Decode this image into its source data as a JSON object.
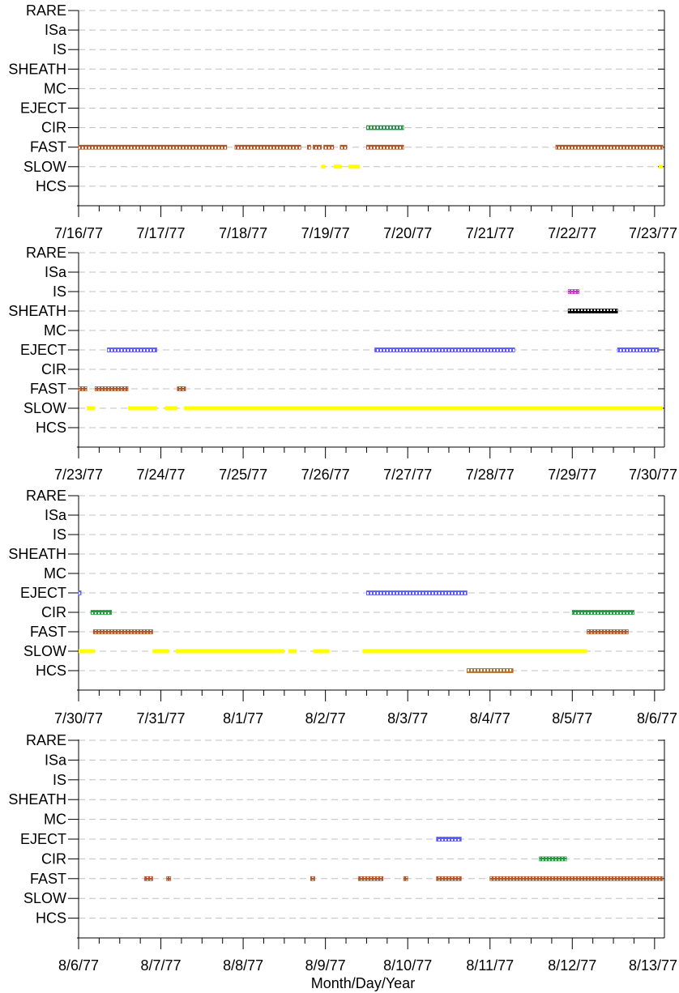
{
  "chart_data": [
    {
      "type": "timeline",
      "categories": [
        "RARE",
        "ISa",
        "IS",
        "SHEATH",
        "MC",
        "EJECT",
        "CIR",
        "FAST",
        "SLOW",
        "HCS"
      ],
      "tick_labels": [
        "7/16/77",
        "7/17/77",
        "7/18/77",
        "7/19/77",
        "7/20/77",
        "7/21/77",
        "7/22/77",
        "7/23/77"
      ],
      "xlim_days": [
        0,
        7.1
      ],
      "grid": "dashed horizontal",
      "intervals": {
        "CIR": [
          [
            3.5,
            3.95
          ]
        ],
        "FAST": [
          [
            0.0,
            1.8
          ],
          [
            1.9,
            2.7
          ],
          [
            2.78,
            2.82
          ],
          [
            2.85,
            2.95
          ],
          [
            2.98,
            3.1
          ],
          [
            3.18,
            3.26
          ],
          [
            3.5,
            3.95
          ],
          [
            5.8,
            7.1
          ]
        ],
        "SLOW": [
          [
            2.95,
            3.0
          ],
          [
            3.1,
            3.2
          ],
          [
            3.28,
            3.42
          ],
          [
            7.05,
            7.1
          ]
        ]
      }
    },
    {
      "type": "timeline",
      "categories": [
        "RARE",
        "ISa",
        "IS",
        "SHEATH",
        "MC",
        "EJECT",
        "CIR",
        "FAST",
        "SLOW",
        "HCS"
      ],
      "tick_labels": [
        "7/23/77",
        "7/24/77",
        "7/25/77",
        "7/26/77",
        "7/27/77",
        "7/28/77",
        "7/29/77",
        "7/30/77"
      ],
      "xlim_days": [
        0,
        7.1
      ],
      "grid": "dashed horizontal",
      "intervals": {
        "IS": [
          [
            5.95,
            6.08
          ]
        ],
        "SHEATH": [
          [
            5.95,
            6.55
          ]
        ],
        "EJECT": [
          [
            0.35,
            0.95
          ],
          [
            3.6,
            5.3
          ],
          [
            6.55,
            7.05
          ]
        ],
        "FAST": [
          [
            0.0,
            0.1
          ],
          [
            0.2,
            0.6
          ],
          [
            1.2,
            1.3
          ]
        ],
        "SLOW": [
          [
            0.1,
            0.2
          ],
          [
            0.6,
            0.95
          ],
          [
            1.05,
            1.2
          ],
          [
            1.28,
            7.1
          ]
        ]
      }
    },
    {
      "type": "timeline",
      "categories": [
        "RARE",
        "ISa",
        "IS",
        "SHEATH",
        "MC",
        "EJECT",
        "CIR",
        "FAST",
        "SLOW",
        "HCS"
      ],
      "tick_labels": [
        "7/30/77",
        "7/31/77",
        "8/1/77",
        "8/2/77",
        "8/3/77",
        "8/4/77",
        "8/5/77",
        "8/6/77"
      ],
      "xlim_days": [
        0,
        7.1
      ],
      "grid": "dashed horizontal",
      "intervals": {
        "EJECT": [
          [
            0.0,
            0.03
          ],
          [
            3.5,
            4.72
          ]
        ],
        "CIR": [
          [
            0.15,
            0.4
          ],
          [
            6.0,
            6.75
          ]
        ],
        "FAST": [
          [
            0.18,
            0.9
          ],
          [
            6.18,
            6.68
          ]
        ],
        "SLOW": [
          [
            0.0,
            0.2
          ],
          [
            0.9,
            1.1
          ],
          [
            1.18,
            2.5
          ],
          [
            2.55,
            2.65
          ],
          [
            2.85,
            3.05
          ],
          [
            3.45,
            6.18
          ]
        ],
        "HCS": [
          [
            4.72,
            5.28
          ]
        ]
      }
    },
    {
      "type": "timeline",
      "categories": [
        "RARE",
        "ISa",
        "IS",
        "SHEATH",
        "MC",
        "EJECT",
        "CIR",
        "FAST",
        "SLOW",
        "HCS"
      ],
      "tick_labels": [
        "8/6/77",
        "8/7/77",
        "8/8/77",
        "8/9/77",
        "8/10/77",
        "8/11/77",
        "8/12/77",
        "8/13/77"
      ],
      "xlim_days": [
        0,
        7.1
      ],
      "grid": "dashed horizontal",
      "xlabel": "Month/Day/Year",
      "intervals": {
        "EJECT": [
          [
            4.35,
            4.65
          ]
        ],
        "CIR": [
          [
            5.6,
            5.93
          ]
        ],
        "FAST": [
          [
            0.8,
            0.9
          ],
          [
            1.07,
            1.12
          ],
          [
            2.82,
            2.87
          ],
          [
            3.4,
            3.7
          ],
          [
            3.95,
            4.0
          ],
          [
            4.35,
            4.65
          ],
          [
            5.0,
            7.15
          ]
        ]
      }
    }
  ],
  "style": {
    "colors": {
      "IS": "#cc33cc",
      "SHEATH": "#000000",
      "EJECT": "#5a5aff",
      "CIR": "#1f9a3a",
      "FAST": "#b2572a",
      "SLOW": "#ffff00",
      "HCS": "#c06a1e",
      "grid": "#c0c0c0",
      "axis": "#000000"
    },
    "band_types": {
      "SLOW": "solid",
      "default": "hatched"
    }
  }
}
